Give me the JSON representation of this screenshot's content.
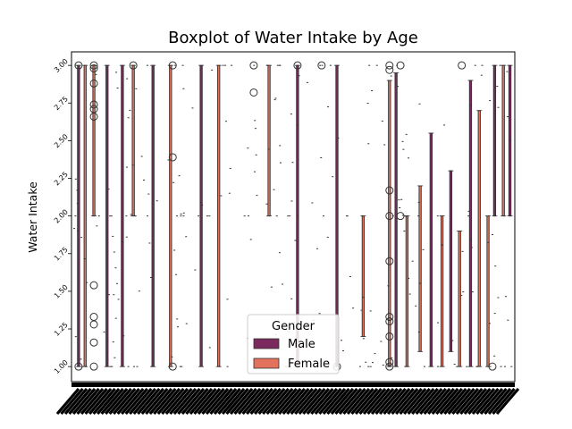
{
  "chart_data": {
    "type": "boxplot",
    "title": "Boxplot of Water Intake by Age",
    "xlabel": "",
    "ylabel": "Water Intake",
    "ylim": [
      0.9,
      3.09
    ],
    "yticks": [
      "1.00",
      "1.25",
      "1.50",
      "1.75",
      "2.00",
      "2.25",
      "2.50",
      "2.75",
      "3.00"
    ],
    "ytick_values": [
      1.0,
      1.25,
      1.5,
      1.75,
      2.0,
      2.25,
      2.5,
      2.75,
      3.0
    ],
    "grid": false,
    "legend": {
      "title": "Gender",
      "placement": "lower-center",
      "entries": [
        {
          "name": "Male",
          "color": "#7a2a5e"
        },
        {
          "name": "Female",
          "color": "#e2725b"
        }
      ]
    },
    "boxes": [
      {
        "pos": 0.01,
        "low": 1.0,
        "high": 3.0,
        "gender": "Male"
      },
      {
        "pos": 0.025,
        "low": 1.0,
        "high": 3.0,
        "gender": "Female"
      },
      {
        "pos": 0.045,
        "low": 2.0,
        "high": 3.0,
        "gender": "Female"
      },
      {
        "pos": 0.075,
        "low": 1.0,
        "high": 3.0,
        "gender": "Male"
      },
      {
        "pos": 0.11,
        "low": 1.0,
        "high": 3.0,
        "gender": "Male"
      },
      {
        "pos": 0.135,
        "low": 2.0,
        "high": 3.0,
        "gender": "Female"
      },
      {
        "pos": 0.18,
        "low": 1.0,
        "high": 3.0,
        "gender": "Male"
      },
      {
        "pos": 0.22,
        "low": 1.0,
        "high": 3.0,
        "gender": "Female"
      },
      {
        "pos": 0.29,
        "low": 1.0,
        "high": 3.0,
        "gender": "Male"
      },
      {
        "pos": 0.33,
        "low": 1.0,
        "high": 3.0,
        "gender": "Female"
      },
      {
        "pos": 0.445,
        "low": 2.0,
        "high": 3.0,
        "gender": "Female"
      },
      {
        "pos": 0.51,
        "low": 1.0,
        "high": 3.0,
        "gender": "Male"
      },
      {
        "pos": 0.6,
        "low": 1.0,
        "high": 3.0,
        "gender": "Male"
      },
      {
        "pos": 0.66,
        "low": 1.2,
        "high": 2.0,
        "gender": "Female"
      },
      {
        "pos": 0.72,
        "low": 1.0,
        "high": 2.9,
        "gender": "Female"
      },
      {
        "pos": 0.735,
        "low": 1.0,
        "high": 2.95,
        "gender": "Male"
      },
      {
        "pos": 0.76,
        "low": 1.0,
        "high": 2.0,
        "gender": "Female"
      },
      {
        "pos": 0.79,
        "low": 1.1,
        "high": 2.2,
        "gender": "Female"
      },
      {
        "pos": 0.815,
        "low": 1.0,
        "high": 2.55,
        "gender": "Male"
      },
      {
        "pos": 0.84,
        "low": 1.0,
        "high": 2.0,
        "gender": "Female"
      },
      {
        "pos": 0.86,
        "low": 1.1,
        "high": 2.3,
        "gender": "Male"
      },
      {
        "pos": 0.88,
        "low": 1.0,
        "high": 1.9,
        "gender": "Female"
      },
      {
        "pos": 0.905,
        "low": 1.0,
        "high": 2.9,
        "gender": "Male"
      },
      {
        "pos": 0.925,
        "low": 1.0,
        "high": 2.7,
        "gender": "Female"
      },
      {
        "pos": 0.945,
        "low": 1.0,
        "high": 2.0,
        "gender": "Female"
      },
      {
        "pos": 0.96,
        "low": 2.0,
        "high": 3.0,
        "gender": "Male"
      },
      {
        "pos": 0.98,
        "low": 2.0,
        "high": 3.0,
        "gender": "Female"
      },
      {
        "pos": 0.995,
        "low": 2.0,
        "high": 3.0,
        "gender": "Male"
      }
    ],
    "outliers": [
      [
        0.01,
        3.0
      ],
      [
        0.01,
        1.0
      ],
      [
        0.045,
        3.0
      ],
      [
        0.045,
        2.98
      ],
      [
        0.045,
        2.88
      ],
      [
        0.045,
        2.74
      ],
      [
        0.045,
        2.71
      ],
      [
        0.045,
        2.66
      ],
      [
        0.045,
        1.54
      ],
      [
        0.045,
        1.33
      ],
      [
        0.045,
        1.28
      ],
      [
        0.045,
        1.16
      ],
      [
        0.045,
        1.0
      ],
      [
        0.135,
        3.0
      ],
      [
        0.225,
        3.0
      ],
      [
        0.225,
        2.39
      ],
      [
        0.225,
        1.0
      ],
      [
        0.41,
        3.0
      ],
      [
        0.41,
        2.82
      ],
      [
        0.51,
        3.0
      ],
      [
        0.565,
        3.0
      ],
      [
        0.6,
        1.0
      ],
      [
        0.72,
        3.0
      ],
      [
        0.72,
        2.97
      ],
      [
        0.72,
        2.17
      ],
      [
        0.72,
        2.0
      ],
      [
        0.72,
        1.7
      ],
      [
        0.72,
        1.33
      ],
      [
        0.72,
        1.3
      ],
      [
        0.72,
        1.2
      ],
      [
        0.72,
        1.03
      ],
      [
        0.72,
        1.0
      ],
      [
        0.745,
        3.0
      ],
      [
        0.745,
        2.0
      ],
      [
        0.885,
        3.0
      ],
      [
        0.955,
        1.0
      ]
    ]
  }
}
